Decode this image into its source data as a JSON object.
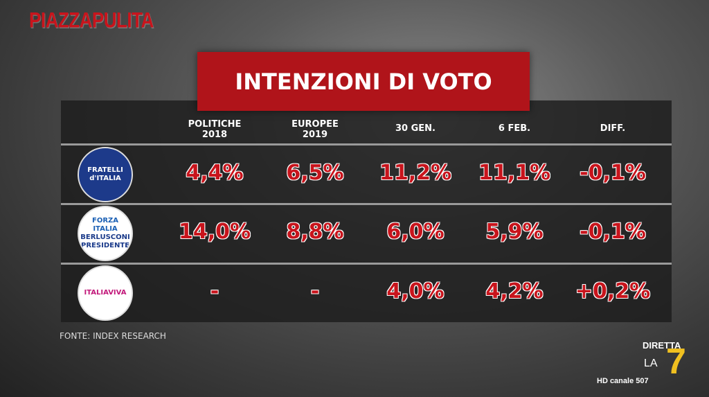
{
  "brand": "PIAZZAPULITA",
  "title": "INTENZIONI DI VOTO",
  "table": {
    "header": [
      [
        "POLITICHE",
        "2018"
      ],
      [
        "EUROPEE",
        "2019"
      ],
      [
        "30 GEN."
      ],
      [
        "6 FEB."
      ],
      [
        "DIFF."
      ]
    ],
    "rows": [
      {
        "logo": [
          "FRATELLI",
          "d'ITALIA"
        ],
        "cells": [
          "4,4%",
          "6,5%",
          "11,2%",
          "11,1%",
          "-0,1%"
        ]
      },
      {
        "logo": [
          "FORZA ITALIA",
          "BERLUSCONI",
          "PRESIDENTE"
        ],
        "cells": [
          "14,0%",
          "8,8%",
          "6,0%",
          "5,9%",
          "-0,1%"
        ]
      },
      {
        "logo": [
          "ITALIAVIVA"
        ],
        "cells": [
          "-",
          "-",
          "4,0%",
          "4,2%",
          "+0,2%"
        ]
      }
    ]
  },
  "source": "FONTE: INDEX RESEARCH",
  "channel": {
    "live": "DIRETTA",
    "name": "LA",
    "number": "7",
    "hd": "HD canale 507"
  }
}
